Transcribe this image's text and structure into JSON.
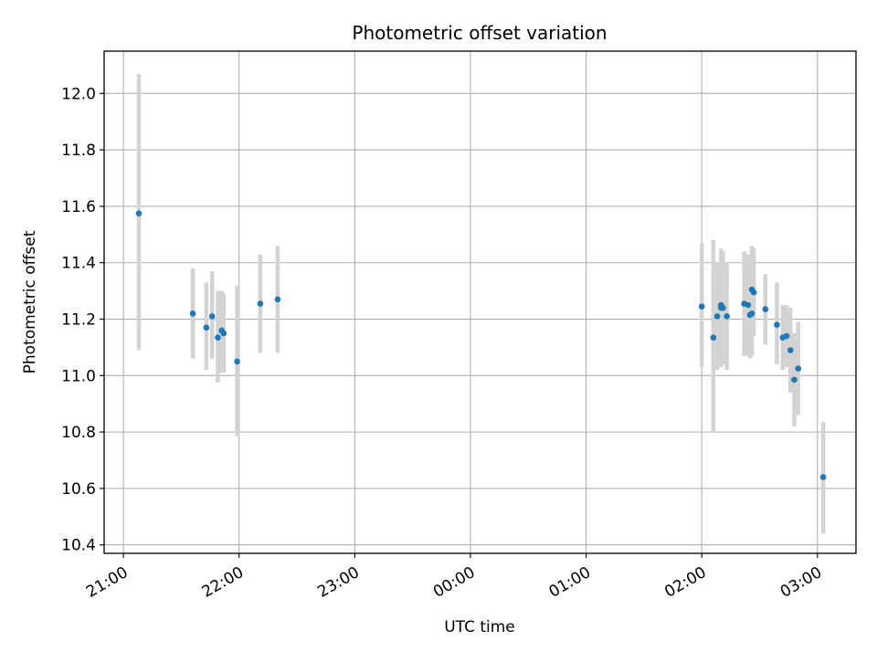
{
  "chart_data": {
    "type": "scatter",
    "title": "Photometric offset variation",
    "xlabel": "UTC time",
    "ylabel": "Photometric offset",
    "grid": true,
    "xlim": [
      "20:50",
      "03:20"
    ],
    "ylim": [
      10.37,
      12.15
    ],
    "xticks": [
      "21:00",
      "22:00",
      "23:00",
      "00:00",
      "01:00",
      "02:00",
      "03:00"
    ],
    "yticks": [
      "10.4",
      "10.6",
      "10.8",
      "11.0",
      "11.2",
      "11.4",
      "11.6",
      "11.8",
      "12.0"
    ],
    "marker_color": "#1f77b4",
    "errorbar_color": "#d3d3d3",
    "points": [
      {
        "t": "21:08",
        "y": 11.575,
        "lo": 11.09,
        "hi": 12.07
      },
      {
        "t": "21:36",
        "y": 11.22,
        "lo": 11.06,
        "hi": 11.38
      },
      {
        "t": "21:43",
        "y": 11.17,
        "lo": 11.02,
        "hi": 11.33
      },
      {
        "t": "21:46",
        "y": 11.21,
        "lo": 11.06,
        "hi": 11.37
      },
      {
        "t": "21:49",
        "y": 11.135,
        "lo": 10.975,
        "hi": 11.3
      },
      {
        "t": "21:51",
        "y": 11.16,
        "lo": 11.01,
        "hi": 11.3
      },
      {
        "t": "21:52",
        "y": 11.15,
        "lo": 11.01,
        "hi": 11.29
      },
      {
        "t": "21:59",
        "y": 11.05,
        "lo": 10.785,
        "hi": 11.32
      },
      {
        "t": "22:11",
        "y": 11.255,
        "lo": 11.08,
        "hi": 11.43
      },
      {
        "t": "22:20",
        "y": 11.27,
        "lo": 11.08,
        "hi": 11.46
      },
      {
        "t": "02:00",
        "y": 11.245,
        "lo": 11.03,
        "hi": 11.47
      },
      {
        "t": "02:06",
        "y": 11.135,
        "lo": 10.8,
        "hi": 11.48
      },
      {
        "t": "02:08",
        "y": 11.21,
        "lo": 11.02,
        "hi": 11.4
      },
      {
        "t": "02:10",
        "y": 11.24,
        "lo": 11.03,
        "hi": 11.44
      },
      {
        "t": "02:10",
        "y": 11.25,
        "lo": 11.06,
        "hi": 11.45
      },
      {
        "t": "02:11",
        "y": 11.24,
        "lo": 11.04,
        "hi": 11.44
      },
      {
        "t": "02:13",
        "y": 11.21,
        "lo": 11.02,
        "hi": 11.4
      },
      {
        "t": "02:22",
        "y": 11.255,
        "lo": 11.07,
        "hi": 11.44
      },
      {
        "t": "02:24",
        "y": 11.25,
        "lo": 11.07,
        "hi": 11.43
      },
      {
        "t": "02:25",
        "y": 11.215,
        "lo": 11.06,
        "hi": 11.37
      },
      {
        "t": "02:26",
        "y": 11.22,
        "lo": 11.07,
        "hi": 11.37
      },
      {
        "t": "02:26",
        "y": 11.305,
        "lo": 11.15,
        "hi": 11.46
      },
      {
        "t": "02:27",
        "y": 11.295,
        "lo": 11.14,
        "hi": 11.45
      },
      {
        "t": "02:33",
        "y": 11.235,
        "lo": 11.11,
        "hi": 11.36
      },
      {
        "t": "02:39",
        "y": 11.18,
        "lo": 11.04,
        "hi": 11.33
      },
      {
        "t": "02:42",
        "y": 11.135,
        "lo": 11.02,
        "hi": 11.25
      },
      {
        "t": "02:44",
        "y": 11.14,
        "lo": 11.03,
        "hi": 11.25
      },
      {
        "t": "02:46",
        "y": 11.09,
        "lo": 10.94,
        "hi": 11.24
      },
      {
        "t": "02:48",
        "y": 10.985,
        "lo": 10.82,
        "hi": 11.15
      },
      {
        "t": "02:50",
        "y": 11.025,
        "lo": 10.86,
        "hi": 11.19
      },
      {
        "t": "03:03",
        "y": 10.64,
        "lo": 10.44,
        "hi": 10.835
      }
    ]
  }
}
